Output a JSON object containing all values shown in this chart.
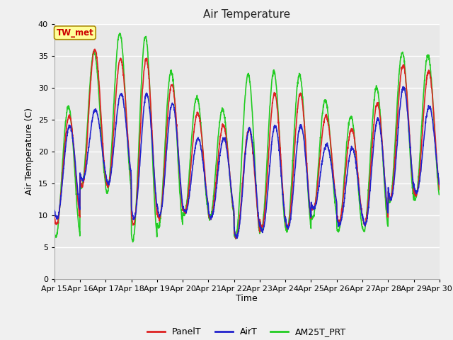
{
  "title": "Air Temperature",
  "xlabel": "Time",
  "ylabel": "Air Temperature (C)",
  "ylim": [
    0,
    40
  ],
  "x_tick_labels": [
    "Apr 15",
    "Apr 16",
    "Apr 17",
    "Apr 18",
    "Apr 19",
    "Apr 20",
    "Apr 21",
    "Apr 22",
    "Apr 23",
    "Apr 24",
    "Apr 25",
    "Apr 26",
    "Apr 27",
    "Apr 28",
    "Apr 29",
    "Apr 30"
  ],
  "annotation_text": "TW_met",
  "annotation_color": "#cc0000",
  "annotation_bg": "#ffff99",
  "annotation_border": "#aa8800",
  "fig_bg": "#f0f0f0",
  "plot_bg": "#e8e8e8",
  "grid_color": "#ffffff",
  "line_colors": {
    "PanelT": "#dd2222",
    "AirT": "#2222cc",
    "AM25T_PRT": "#22cc22"
  },
  "line_width": 1.2,
  "panel_mins": [
    8.5,
    14.5,
    14.5,
    8.5,
    9.5,
    10.5,
    9.5,
    6.5,
    8.0,
    8.0,
    11.0,
    9.0,
    8.5,
    12.5,
    13.0
  ],
  "panel_maxs": [
    25.5,
    36.0,
    34.5,
    34.5,
    30.5,
    26.0,
    24.0,
    23.5,
    29.0,
    29.0,
    25.5,
    23.5,
    27.5,
    33.5,
    32.5
  ],
  "air_mins": [
    9.5,
    15.5,
    15.0,
    9.5,
    10.0,
    10.5,
    9.5,
    6.5,
    7.5,
    8.0,
    11.0,
    8.5,
    8.5,
    12.5,
    13.5
  ],
  "air_maxs": [
    24.0,
    26.5,
    29.0,
    29.0,
    27.5,
    22.0,
    22.0,
    23.5,
    24.0,
    24.0,
    21.0,
    20.5,
    25.0,
    30.0,
    27.0
  ],
  "am25_mins": [
    6.5,
    14.5,
    13.5,
    6.0,
    8.0,
    10.0,
    9.5,
    6.5,
    7.5,
    7.5,
    9.5,
    7.5,
    7.5,
    12.0,
    12.5
  ],
  "am25_maxs": [
    27.0,
    35.5,
    38.5,
    38.0,
    32.5,
    28.5,
    26.5,
    32.0,
    32.5,
    32.0,
    28.0,
    25.5,
    30.0,
    35.5,
    35.0
  ],
  "peak_hour_panel": 0.58,
  "peak_hour_air": 0.6,
  "peak_hour_am25": 0.55
}
